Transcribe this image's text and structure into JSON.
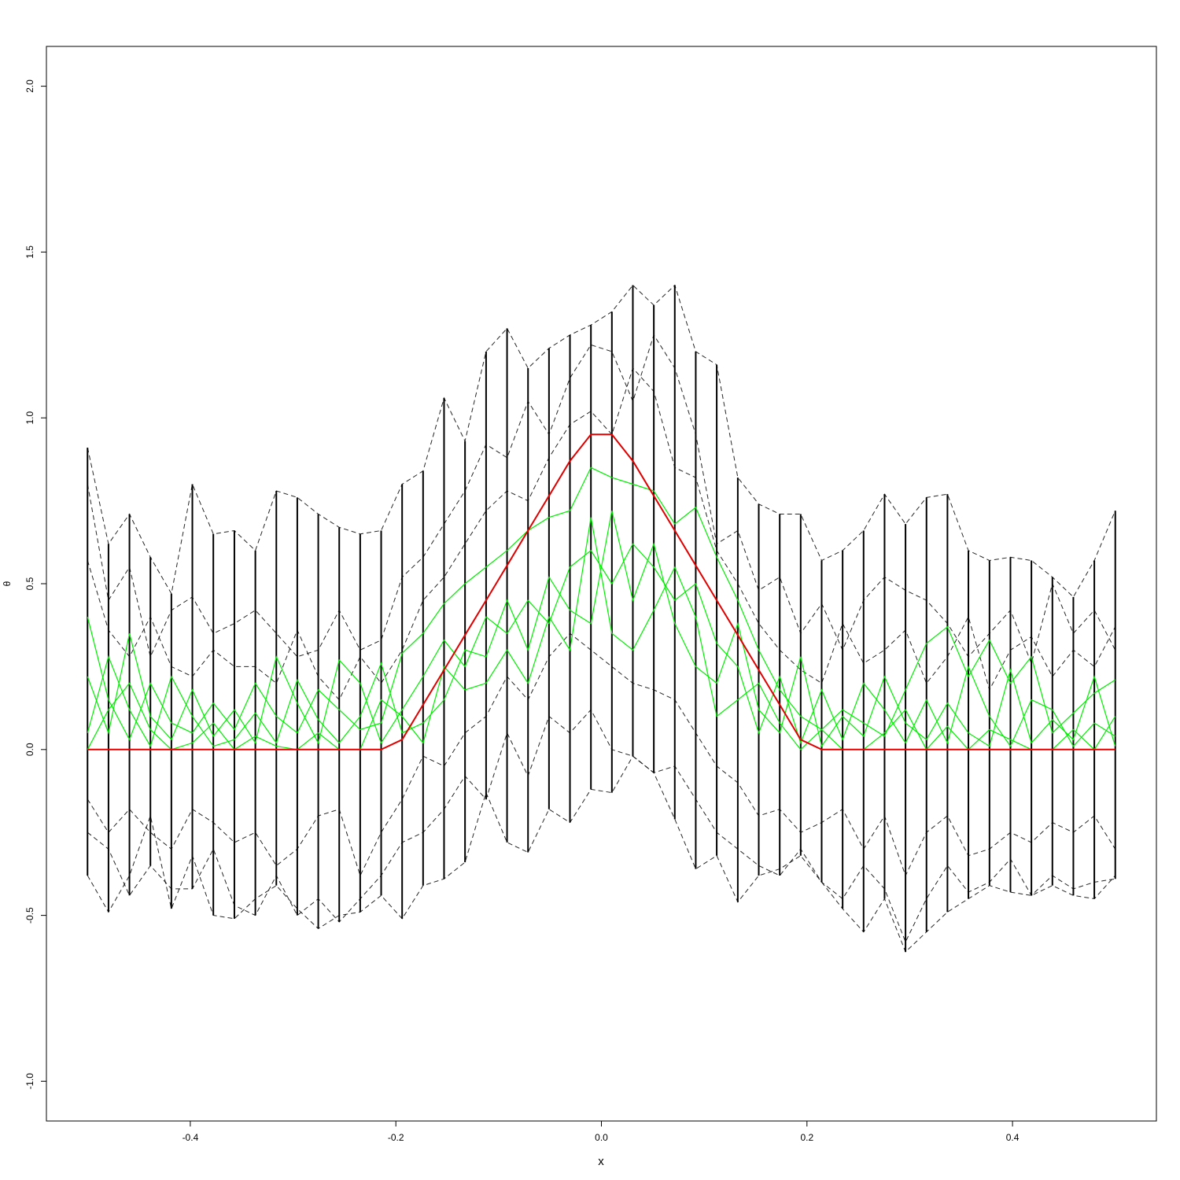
{
  "chart_data": {
    "type": "line",
    "title": "",
    "xlabel": "x",
    "ylabel": "θ",
    "xlim": [
      -0.54,
      0.54
    ],
    "ylim": [
      -1.12,
      2.12
    ],
    "x_ticks": [
      -0.4,
      -0.2,
      0.0,
      0.2,
      0.4
    ],
    "x_tick_labels": [
      "-0.4",
      "-0.2",
      "0.0",
      "0.2",
      "0.4"
    ],
    "y_ticks": [
      -1.0,
      -0.5,
      0.0,
      0.5,
      1.0,
      1.5,
      2.0
    ],
    "y_tick_labels": [
      "-1.0",
      "-0.5",
      "0.0",
      "0.5",
      "1.0",
      "1.5",
      "2.0"
    ],
    "grid": false,
    "legend": "none",
    "colors": {
      "true_curve": "#e00000",
      "estimates": "#00ee00",
      "bands": "#000000"
    },
    "x": [
      -0.5,
      -0.4796,
      -0.4592,
      -0.4388,
      -0.4184,
      -0.398,
      -0.3776,
      -0.3571,
      -0.3367,
      -0.3163,
      -0.2959,
      -0.2755,
      -0.2551,
      -0.2347,
      -0.2143,
      -0.1939,
      -0.1735,
      -0.1531,
      -0.1327,
      -0.1122,
      -0.0918,
      -0.0714,
      -0.051,
      -0.0306,
      -0.0102,
      0.0102,
      0.0306,
      0.051,
      0.0714,
      0.0918,
      0.1122,
      0.1327,
      0.1531,
      0.1735,
      0.1939,
      0.2143,
      0.2347,
      0.2551,
      0.2755,
      0.2959,
      0.3163,
      0.3367,
      0.3571,
      0.3776,
      0.398,
      0.4184,
      0.4388,
      0.4592,
      0.4796,
      0.5
    ],
    "series": [
      {
        "role": "true",
        "values": [
          0,
          0,
          0,
          0,
          0,
          0,
          0,
          0,
          0,
          0,
          0,
          0,
          0,
          0,
          0,
          0.03,
          0.135,
          0.24,
          0.345,
          0.45,
          0.555,
          0.66,
          0.765,
          0.87,
          0.95,
          0.95,
          0.87,
          0.765,
          0.66,
          0.555,
          0.45,
          0.345,
          0.24,
          0.135,
          0.03,
          0,
          0,
          0,
          0,
          0,
          0,
          0,
          0,
          0,
          0,
          0,
          0,
          0,
          0,
          0
        ]
      },
      {
        "role": "estimate",
        "values": [
          0.4,
          0.15,
          0.03,
          0.2,
          0.08,
          0.05,
          0.14,
          0.06,
          0.2,
          0.1,
          0.05,
          0.18,
          0.12,
          0.06,
          0.08,
          0.29,
          0.35,
          0.44,
          0.5,
          0.55,
          0.6,
          0.66,
          0.7,
          0.72,
          0.85,
          0.82,
          0.8,
          0.78,
          0.68,
          0.73,
          0.58,
          0.45,
          0.3,
          0.18,
          0.1,
          0.06,
          0.12,
          0.08,
          0.04,
          0.18,
          0.32,
          0.37,
          0.22,
          0.33,
          0.2,
          0.28,
          0.05,
          0.11,
          0.17,
          0.21
        ]
      },
      {
        "role": "estimate",
        "values": [
          0.22,
          0.05,
          0.35,
          0.1,
          0.03,
          0.18,
          0.04,
          0.12,
          0.02,
          0.28,
          0.14,
          0.02,
          0.27,
          0.2,
          0.02,
          0.12,
          0.22,
          0.33,
          0.25,
          0.4,
          0.35,
          0.45,
          0.38,
          0.55,
          0.6,
          0.5,
          0.62,
          0.55,
          0.45,
          0.5,
          0.32,
          0.25,
          0.05,
          0.22,
          0.02,
          0.18,
          0.03,
          0.2,
          0.12,
          0.02,
          0.15,
          0.02,
          0.25,
          0.1,
          0.01,
          0.15,
          0.12,
          0.01,
          0.08,
          0.04
        ]
      },
      {
        "role": "estimate",
        "values": [
          0.05,
          0.28,
          0.12,
          0.01,
          0.22,
          0.1,
          0.01,
          0.03,
          0.11,
          0.02,
          0.21,
          0.09,
          0.02,
          0.1,
          0.26,
          0.05,
          0.08,
          0.15,
          0.3,
          0.28,
          0.45,
          0.3,
          0.52,
          0.42,
          0.38,
          0.72,
          0.45,
          0.62,
          0.38,
          0.25,
          0.2,
          0.38,
          0.12,
          0.05,
          0.28,
          0.01,
          0.1,
          0.04,
          0.22,
          0.08,
          0.03,
          0.14,
          0.05,
          0.01,
          0.24,
          0.02,
          0.09,
          0.03,
          0.22,
          0.01
        ]
      },
      {
        "role": "estimate",
        "values": [
          0.0,
          0.12,
          0.2,
          0.06,
          0.0,
          0.02,
          0.08,
          0.0,
          0.04,
          0.01,
          0.0,
          0.05,
          0.0,
          0.0,
          0.15,
          0.1,
          0.02,
          0.25,
          0.18,
          0.2,
          0.3,
          0.2,
          0.4,
          0.3,
          0.7,
          0.35,
          0.3,
          0.42,
          0.55,
          0.4,
          0.1,
          0.15,
          0.2,
          0.08,
          0.0,
          0.06,
          0.0,
          0.0,
          0.05,
          0.12,
          0.0,
          0.07,
          0.0,
          0.06,
          0.03,
          0.0,
          0.0,
          0.06,
          0.0,
          0.1
        ]
      },
      {
        "role": "band",
        "values": [
          0.91,
          0.62,
          0.71,
          0.58,
          0.47,
          0.8,
          0.65,
          0.66,
          0.6,
          0.78,
          0.76,
          0.71,
          0.67,
          0.65,
          0.66,
          0.8,
          0.84,
          1.06,
          0.93,
          1.2,
          1.27,
          1.15,
          1.21,
          1.25,
          1.28,
          1.32,
          1.4,
          1.34,
          1.4,
          1.2,
          1.16,
          0.82,
          0.74,
          0.71,
          0.71,
          0.57,
          0.6,
          0.66,
          0.77,
          0.68,
          0.76,
          0.77,
          0.6,
          0.57,
          0.58,
          0.57,
          0.52,
          0.46,
          0.57,
          0.72
        ]
      },
      {
        "role": "band",
        "values": [
          0.8,
          0.45,
          0.55,
          0.28,
          0.42,
          0.46,
          0.35,
          0.38,
          0.42,
          0.35,
          0.28,
          0.3,
          0.42,
          0.3,
          0.33,
          0.52,
          0.58,
          0.68,
          0.78,
          0.92,
          0.88,
          1.05,
          0.95,
          1.12,
          1.22,
          1.2,
          1.05,
          1.25,
          1.15,
          0.95,
          0.62,
          0.66,
          0.48,
          0.52,
          0.35,
          0.44,
          0.3,
          0.45,
          0.52,
          0.48,
          0.45,
          0.38,
          0.28,
          0.35,
          0.42,
          0.26,
          0.5,
          0.35,
          0.42,
          0.3
        ]
      },
      {
        "role": "band",
        "values": [
          0.57,
          0.36,
          0.28,
          0.4,
          0.25,
          0.22,
          0.3,
          0.25,
          0.25,
          0.2,
          0.36,
          0.22,
          0.15,
          0.28,
          0.2,
          0.3,
          0.45,
          0.52,
          0.62,
          0.72,
          0.78,
          0.75,
          0.88,
          0.98,
          1.02,
          0.95,
          1.15,
          1.08,
          0.85,
          0.82,
          0.6,
          0.5,
          0.38,
          0.3,
          0.24,
          0.2,
          0.38,
          0.26,
          0.3,
          0.36,
          0.2,
          0.28,
          0.4,
          0.18,
          0.3,
          0.34,
          0.22,
          0.3,
          0.25,
          0.37
        ]
      },
      {
        "role": "band",
        "values": [
          -0.15,
          -0.25,
          -0.18,
          -0.25,
          -0.3,
          -0.18,
          -0.22,
          -0.28,
          -0.25,
          -0.35,
          -0.3,
          -0.2,
          -0.18,
          -0.38,
          -0.25,
          -0.15,
          -0.02,
          -0.05,
          0.05,
          0.1,
          0.22,
          0.15,
          0.28,
          0.35,
          0.3,
          0.25,
          0.2,
          0.18,
          0.15,
          0.05,
          -0.05,
          -0.1,
          -0.2,
          -0.18,
          -0.25,
          -0.22,
          -0.18,
          -0.3,
          -0.2,
          -0.38,
          -0.25,
          -0.2,
          -0.32,
          -0.3,
          -0.25,
          -0.28,
          -0.22,
          -0.25,
          -0.2,
          -0.3
        ]
      },
      {
        "role": "band",
        "values": [
          -0.25,
          -0.3,
          -0.44,
          -0.35,
          -0.42,
          -0.42,
          -0.3,
          -0.47,
          -0.5,
          -0.38,
          -0.5,
          -0.45,
          -0.52,
          -0.45,
          -0.38,
          -0.28,
          -0.25,
          -0.18,
          -0.08,
          -0.15,
          0.05,
          -0.08,
          0.1,
          0.05,
          0.12,
          0.0,
          -0.02,
          -0.07,
          -0.05,
          -0.15,
          -0.25,
          -0.3,
          -0.35,
          -0.38,
          -0.3,
          -0.4,
          -0.45,
          -0.35,
          -0.42,
          -0.58,
          -0.45,
          -0.35,
          -0.43,
          -0.4,
          -0.33,
          -0.44,
          -0.38,
          -0.42,
          -0.4,
          -0.39
        ]
      },
      {
        "role": "band",
        "values": [
          -0.38,
          -0.49,
          -0.38,
          -0.2,
          -0.48,
          -0.32,
          -0.5,
          -0.51,
          -0.45,
          -0.41,
          -0.48,
          -0.54,
          -0.5,
          -0.49,
          -0.44,
          -0.51,
          -0.41,
          -0.39,
          -0.34,
          -0.13,
          -0.28,
          -0.31,
          -0.18,
          -0.22,
          -0.12,
          -0.13,
          -0.02,
          -0.07,
          -0.21,
          -0.36,
          -0.32,
          -0.46,
          -0.38,
          -0.36,
          -0.32,
          -0.4,
          -0.48,
          -0.55,
          -0.45,
          -0.61,
          -0.55,
          -0.49,
          -0.45,
          -0.41,
          -0.43,
          -0.44,
          -0.41,
          -0.44,
          -0.45,
          -0.38
        ]
      }
    ]
  }
}
